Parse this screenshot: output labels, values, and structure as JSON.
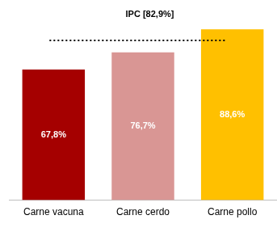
{
  "chart_data": {
    "type": "bar",
    "categories": [
      "Carne vacuna",
      "Carne cerdo",
      "Carne pollo"
    ],
    "values": [
      67.8,
      76.7,
      88.6
    ],
    "value_labels": [
      "67,8%",
      "76,7%",
      "88,6%"
    ],
    "colors": [
      "#a50000",
      "#d99694",
      "#ffc000"
    ],
    "ylim": [
      0,
      90
    ],
    "yticks": [
      0,
      90
    ],
    "grid": false,
    "data_labels": true,
    "tick_labels": "x",
    "reference_line": {
      "value": 82.9,
      "label": "IPC [82,9%]",
      "line_style": "dotted"
    }
  }
}
